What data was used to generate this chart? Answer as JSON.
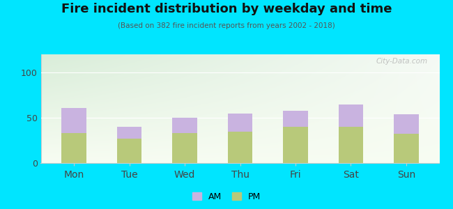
{
  "title": "Fire incident distribution by weekday and time",
  "subtitle": "(Based on 382 fire incident reports from years 2002 - 2018)",
  "categories": [
    "Mon",
    "Tue",
    "Wed",
    "Thu",
    "Fri",
    "Sat",
    "Sun"
  ],
  "pm_values": [
    33,
    27,
    33,
    35,
    40,
    40,
    32
  ],
  "am_values": [
    28,
    13,
    17,
    20,
    18,
    25,
    22
  ],
  "am_color": "#c9b3e0",
  "pm_color": "#b8c97a",
  "background_outer": "#00e5ff",
  "ylim": [
    0,
    120
  ],
  "yticks": [
    0,
    50,
    100
  ],
  "bar_width": 0.45,
  "watermark": "City-Data.com"
}
